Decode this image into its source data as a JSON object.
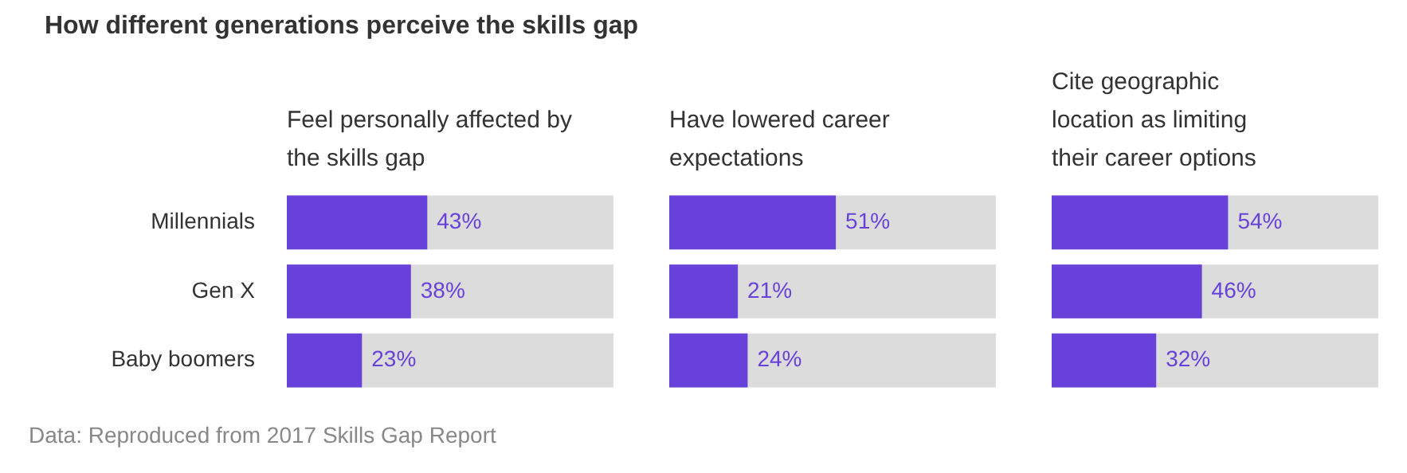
{
  "chart_data": [
    {
      "type": "bar",
      "orientation": "horizontal",
      "title": "How different generations perceive the skills gap",
      "subtitle": "Feel personally affected by the skills gap",
      "categories": [
        "Millennials",
        "Gen X",
        "Baby boomers"
      ],
      "values": [
        43,
        38,
        23
      ],
      "value_labels": [
        "43%",
        "38%",
        "23%"
      ],
      "color": "#6741d9",
      "xlim": [
        0,
        100
      ],
      "tick_labels": "y",
      "grid": false,
      "legend": false,
      "annotations": [
        "Data: Reproduced from 2017 Skills Gap Report"
      ]
    },
    {
      "type": "bar",
      "orientation": "horizontal",
      "title": "Have lowered career expectations",
      "categories": [
        null,
        null,
        null
      ],
      "values": [
        51,
        21,
        24
      ],
      "value_labels": [
        "51%",
        "21%",
        "24%"
      ],
      "color": "#6741d9",
      "xlim": [
        0,
        100
      ],
      "tick_labels": false,
      "grid": false,
      "legend": false
    },
    {
      "type": "bar",
      "orientation": "horizontal",
      "title": "Cite geographic location as limiting their career options",
      "categories": [
        null,
        null,
        null
      ],
      "values": [
        54,
        46,
        32
      ],
      "value_labels": [
        "54%",
        "46%",
        "32%"
      ],
      "color": "#6741d9",
      "xlim": [
        0,
        100
      ],
      "tick_labels": false,
      "grid": false,
      "legend": false
    }
  ]
}
